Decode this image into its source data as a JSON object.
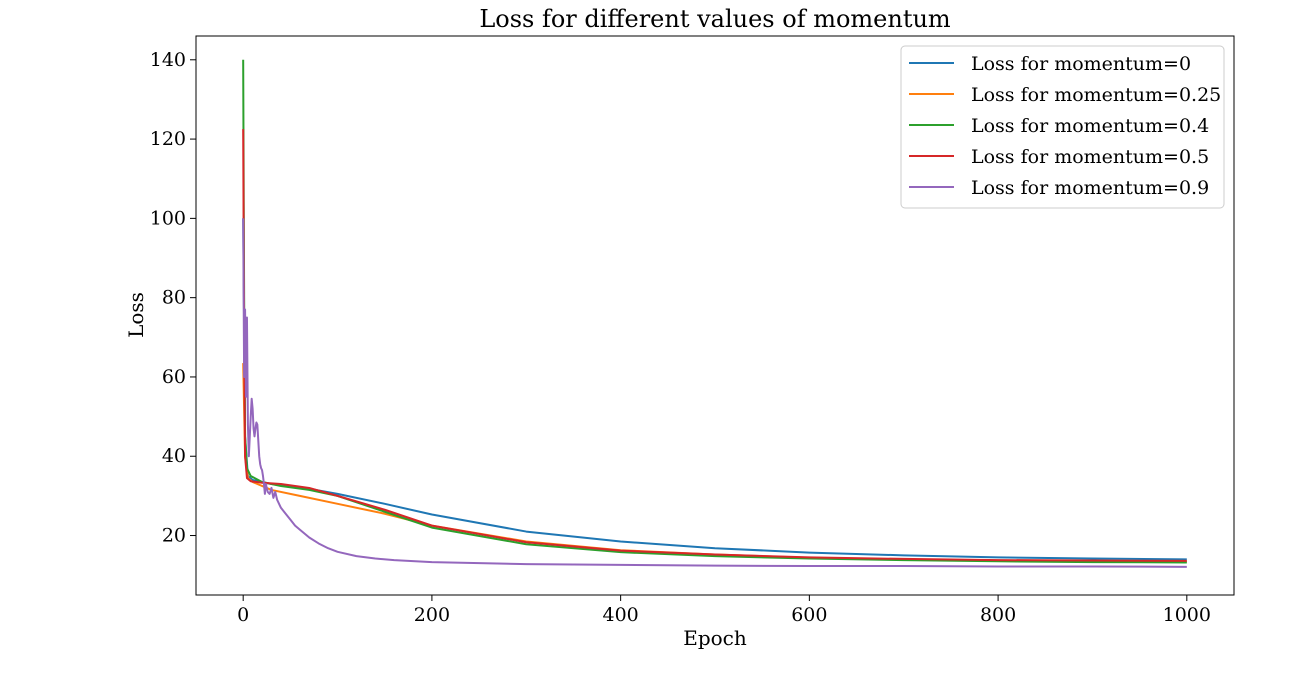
{
  "chart_data": {
    "type": "line",
    "title": "Loss for different values of momentum",
    "xlabel": "Epoch",
    "ylabel": "Loss",
    "xlim": [
      -50,
      1050
    ],
    "ylim": [
      5,
      146
    ],
    "xticks": [
      0,
      200,
      400,
      600,
      800,
      1000
    ],
    "yticks": [
      20,
      40,
      60,
      80,
      100,
      120,
      140
    ],
    "grid": false,
    "legend_position": "top-right",
    "series": [
      {
        "name": "Loss for momentum=0",
        "color": "#1f77b4",
        "points": [
          [
            0,
            100
          ],
          [
            2,
            45
          ],
          [
            5,
            35
          ],
          [
            10,
            34
          ],
          [
            30,
            33
          ],
          [
            60,
            32.2
          ],
          [
            100,
            30.5
          ],
          [
            150,
            28
          ],
          [
            200,
            25.3
          ],
          [
            300,
            21
          ],
          [
            400,
            18.5
          ],
          [
            500,
            16.8
          ],
          [
            600,
            15.7
          ],
          [
            700,
            15
          ],
          [
            800,
            14.5
          ],
          [
            900,
            14.2
          ],
          [
            1000,
            14
          ]
        ]
      },
      {
        "name": "Loss for momentum=0.25",
        "color": "#ff7f0e",
        "points": [
          [
            0,
            63.5
          ],
          [
            2,
            40
          ],
          [
            5,
            34.5
          ],
          [
            10,
            33.5
          ],
          [
            30,
            31.5
          ],
          [
            60,
            30
          ],
          [
            100,
            28
          ],
          [
            150,
            25.5
          ],
          [
            200,
            22.5
          ],
          [
            300,
            18.5
          ],
          [
            400,
            16.3
          ],
          [
            500,
            15.2
          ],
          [
            600,
            14.4
          ],
          [
            700,
            14
          ],
          [
            800,
            13.7
          ],
          [
            900,
            13.5
          ],
          [
            1000,
            13.4
          ]
        ]
      },
      {
        "name": "Loss for momentum=0.4",
        "color": "#2ca02c",
        "points": [
          [
            0,
            140
          ],
          [
            1,
            80
          ],
          [
            2,
            45
          ],
          [
            4,
            37
          ],
          [
            8,
            35
          ],
          [
            20,
            33.5
          ],
          [
            40,
            32.5
          ],
          [
            70,
            31.5
          ],
          [
            100,
            30
          ],
          [
            150,
            26
          ],
          [
            200,
            22
          ],
          [
            300,
            17.8
          ],
          [
            400,
            15.8
          ],
          [
            500,
            14.8
          ],
          [
            600,
            14.2
          ],
          [
            700,
            13.8
          ],
          [
            800,
            13.5
          ],
          [
            900,
            13.3
          ],
          [
            1000,
            13.2
          ]
        ]
      },
      {
        "name": "Loss for momentum=0.5",
        "color": "#d62728",
        "points": [
          [
            0,
            122.5
          ],
          [
            1,
            70
          ],
          [
            2,
            40
          ],
          [
            4,
            34.5
          ],
          [
            8,
            33.7
          ],
          [
            20,
            33.3
          ],
          [
            40,
            33
          ],
          [
            70,
            32
          ],
          [
            100,
            30
          ],
          [
            150,
            26.5
          ],
          [
            200,
            22.5
          ],
          [
            300,
            18.3
          ],
          [
            400,
            16.2
          ],
          [
            500,
            15.2
          ],
          [
            600,
            14.5
          ],
          [
            700,
            14.1
          ],
          [
            800,
            13.8
          ],
          [
            900,
            13.7
          ],
          [
            1000,
            13.6
          ]
        ]
      },
      {
        "name": "Loss for momentum=0.9",
        "color": "#9467bd",
        "points": [
          [
            0,
            100
          ],
          [
            1,
            60
          ],
          [
            2,
            77
          ],
          [
            3,
            55
          ],
          [
            4,
            75
          ],
          [
            5,
            48
          ],
          [
            6,
            40
          ],
          [
            7,
            45
          ],
          [
            8,
            50
          ],
          [
            9,
            54.5
          ],
          [
            10,
            52
          ],
          [
            11,
            47
          ],
          [
            12,
            45
          ],
          [
            13,
            47
          ],
          [
            14,
            48.5
          ],
          [
            15,
            48
          ],
          [
            16,
            44
          ],
          [
            17,
            40
          ],
          [
            18,
            38
          ],
          [
            19,
            37
          ],
          [
            20,
            36.5
          ],
          [
            21,
            35
          ],
          [
            22,
            33
          ],
          [
            23,
            30.5
          ],
          [
            24,
            33
          ],
          [
            26,
            31
          ],
          [
            28,
            30.5
          ],
          [
            30,
            32
          ],
          [
            32,
            29.5
          ],
          [
            34,
            31
          ],
          [
            36,
            29
          ],
          [
            40,
            27
          ],
          [
            45,
            25.5
          ],
          [
            50,
            24
          ],
          [
            55,
            22.5
          ],
          [
            60,
            21.5
          ],
          [
            70,
            19.5
          ],
          [
            80,
            18
          ],
          [
            90,
            16.8
          ],
          [
            100,
            15.9
          ],
          [
            120,
            14.8
          ],
          [
            140,
            14.2
          ],
          [
            160,
            13.8
          ],
          [
            200,
            13.3
          ],
          [
            300,
            12.8
          ],
          [
            400,
            12.6
          ],
          [
            500,
            12.4
          ],
          [
            600,
            12.3
          ],
          [
            700,
            12.3
          ],
          [
            800,
            12.2
          ],
          [
            900,
            12.2
          ],
          [
            1000,
            12.1
          ]
        ]
      }
    ]
  }
}
